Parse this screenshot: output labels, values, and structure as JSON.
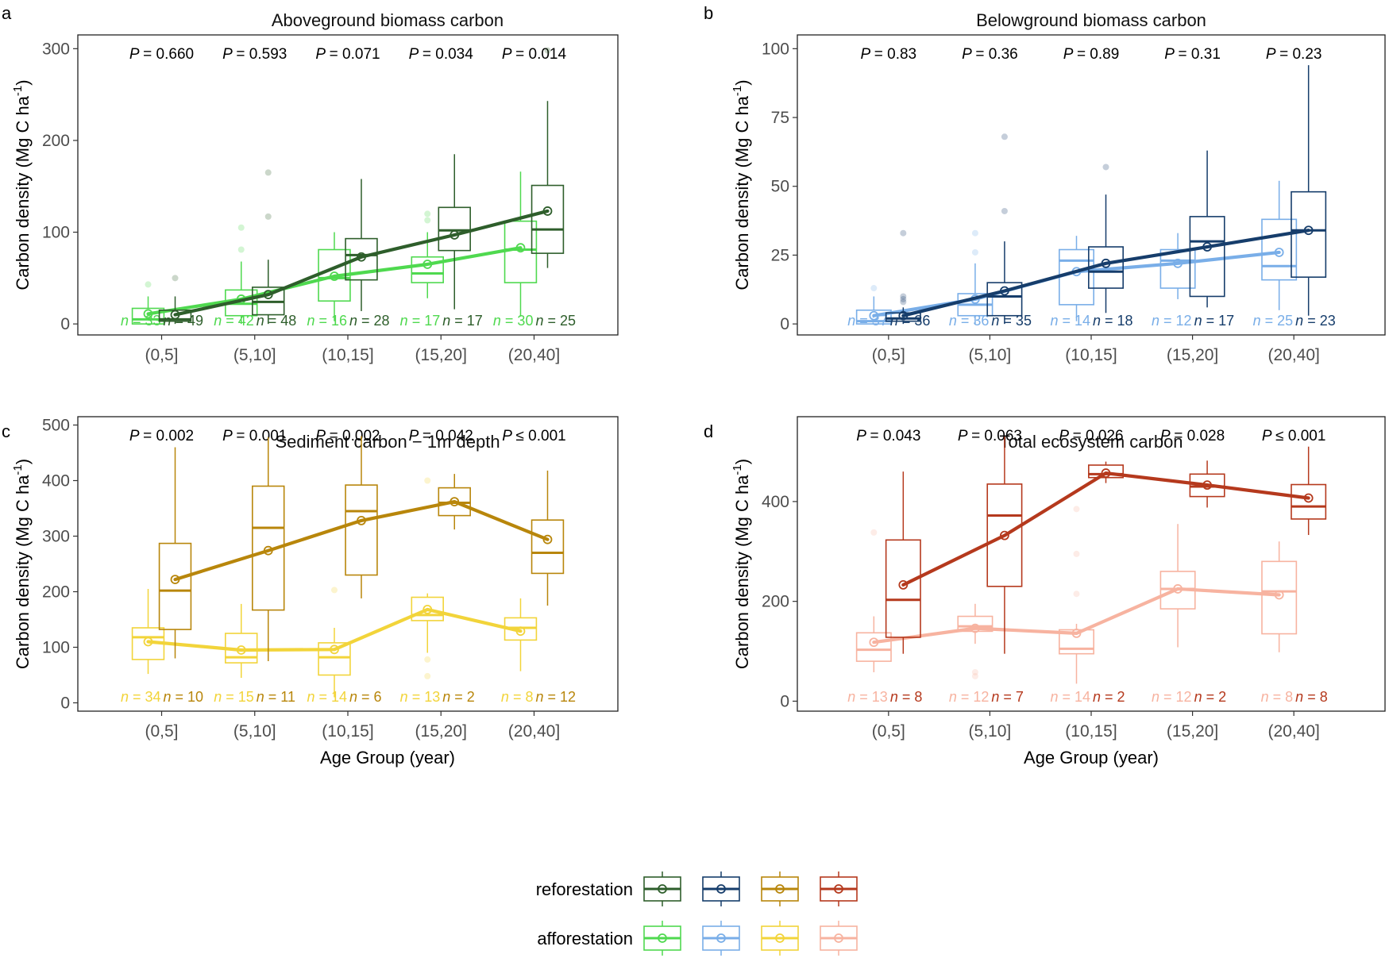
{
  "x_axis_label": "Age Group (year)",
  "legend": {
    "labels": [
      "reforestation",
      "afforestation"
    ],
    "reforestation_colors": [
      "#2e5e2b",
      "#163d6b",
      "#b8860b",
      "#b5391d"
    ],
    "afforestation_colors": [
      "#4fd94f",
      "#79aee8",
      "#f2d43a",
      "#f7b3a0"
    ]
  },
  "chart_data": [
    {
      "panel": "a",
      "type": "box",
      "title": "Aboveground biomass carbon",
      "ylabel": "Carbon density (Mg C ha",
      "ylabel_sup": "-1",
      "ylabel_close": ")",
      "ylim": [
        -12,
        315
      ],
      "yticks": [
        "0",
        "100",
        "200",
        "300"
      ],
      "ytick_values": [
        0,
        100,
        200,
        300
      ],
      "categories": [
        "(0,5]",
        "(5,10]",
        "(10,15]",
        "(15,20]",
        "(20,40]"
      ],
      "p_values": [
        "= 0.660",
        "= 0.593",
        "= 0.071",
        "= 0.034",
        "= 0.014"
      ],
      "series": [
        {
          "name": "reforestation",
          "color": "#2e5e2b",
          "boxes": [
            {
              "q1": 3,
              "median": 5,
              "q3": 15,
              "lo": 0,
              "hi": 30,
              "mean": 10,
              "outliers": [
                50
              ]
            },
            {
              "q1": 10,
              "median": 24,
              "q3": 40,
              "lo": 0,
              "hi": 70,
              "mean": 32,
              "outliers": [
                117,
                165
              ]
            },
            {
              "q1": 48,
              "median": 75,
              "q3": 93,
              "lo": 14,
              "hi": 158,
              "mean": 73,
              "outliers": []
            },
            {
              "q1": 80,
              "median": 102,
              "q3": 127,
              "lo": 16,
              "hi": 185,
              "mean": 97,
              "outliers": []
            },
            {
              "q1": 77,
              "median": 103,
              "q3": 151,
              "lo": 61,
              "hi": 243,
              "mean": 123,
              "outliers": [
                298
              ]
            }
          ],
          "trend": [
            10,
            32,
            73,
            97,
            123
          ],
          "n": [
            "= 49",
            "= 48",
            "= 28",
            "= 17",
            "= 25"
          ]
        },
        {
          "name": "afforestation",
          "color": "#4fd94f",
          "boxes": [
            {
              "q1": 0,
              "median": 5,
              "q3": 17,
              "lo": 0,
              "hi": 30,
              "mean": 11,
              "outliers": [
                43
              ]
            },
            {
              "q1": 9,
              "median": 22,
              "q3": 37,
              "lo": 0,
              "hi": 68,
              "mean": 27,
              "outliers": [
                81,
                105
              ]
            },
            {
              "q1": 25,
              "median": 50,
              "q3": 81,
              "lo": 3,
              "hi": 100,
              "mean": 52,
              "outliers": []
            },
            {
              "q1": 45,
              "median": 55,
              "q3": 73,
              "lo": 28,
              "hi": 100,
              "mean": 65,
              "outliers": [
                113,
                120
              ]
            },
            {
              "q1": 45,
              "median": 81,
              "q3": 112,
              "lo": 8,
              "hi": 166,
              "mean": 83,
              "outliers": []
            }
          ],
          "trend": [
            11,
            27,
            52,
            65,
            83
          ],
          "n": [
            "= 33",
            "= 42",
            "= 16",
            "= 17",
            "= 30"
          ]
        }
      ]
    },
    {
      "panel": "b",
      "type": "box",
      "title": "Belowground biomass carbon",
      "ylabel": "Carbon density (Mg C ha",
      "ylabel_sup": "-1",
      "ylabel_close": ")",
      "ylim": [
        -4,
        105
      ],
      "yticks": [
        "0",
        "25",
        "50",
        "75",
        "100"
      ],
      "ytick_values": [
        0,
        25,
        50,
        75,
        100
      ],
      "categories": [
        "(0,5]",
        "(5,10]",
        "(10,15]",
        "(15,20]",
        "(20,40]"
      ],
      "p_values": [
        "= 0.83",
        "= 0.36",
        "= 0.89",
        "= 0.31",
        "= 0.23"
      ],
      "series": [
        {
          "name": "reforestation",
          "color": "#163d6b",
          "boxes": [
            {
              "q1": 1,
              "median": 2,
              "q3": 4,
              "lo": 0,
              "hi": 6,
              "mean": 3,
              "outliers": [
                8,
                9,
                10,
                33
              ]
            },
            {
              "q1": 3,
              "median": 10,
              "q3": 15,
              "lo": 0,
              "hi": 30,
              "mean": 12,
              "outliers": [
                41,
                68
              ]
            },
            {
              "q1": 13,
              "median": 19,
              "q3": 28,
              "lo": 4,
              "hi": 47,
              "mean": 22,
              "outliers": [
                57
              ]
            },
            {
              "q1": 10,
              "median": 30,
              "q3": 39,
              "lo": 6,
              "hi": 63,
              "mean": 28,
              "outliers": []
            },
            {
              "q1": 17,
              "median": 34,
              "q3": 48,
              "lo": 3,
              "hi": 94,
              "mean": 34,
              "outliers": []
            }
          ],
          "trend": [
            3,
            12,
            22,
            28,
            34
          ],
          "n": [
            "= 36",
            "= 35",
            "= 18",
            "= 17",
            "= 23"
          ]
        },
        {
          "name": "afforestation",
          "color": "#79aee8",
          "boxes": [
            {
              "q1": 0,
              "median": 1,
              "q3": 5,
              "lo": 0,
              "hi": 10,
              "mean": 3,
              "outliers": [
                13
              ]
            },
            {
              "q1": 3,
              "median": 7,
              "q3": 11,
              "lo": 0,
              "hi": 22,
              "mean": 9,
              "outliers": [
                26,
                33
              ]
            },
            {
              "q1": 7,
              "median": 23,
              "q3": 27,
              "lo": 1,
              "hi": 32,
              "mean": 19,
              "outliers": []
            },
            {
              "q1": 13,
              "median": 23,
              "q3": 27,
              "lo": 9,
              "hi": 33,
              "mean": 22,
              "outliers": []
            },
            {
              "q1": 16,
              "median": 21,
              "q3": 38,
              "lo": 5,
              "hi": 52,
              "mean": 26,
              "outliers": []
            }
          ],
          "trend": [
            3,
            9,
            19,
            22,
            26
          ],
          "n": [
            "= 37",
            "= 36",
            "= 14",
            "= 12",
            "= 25"
          ]
        }
      ]
    },
    {
      "panel": "c",
      "type": "box",
      "title": "Sediment carbon − 1m depth",
      "ylabel": "Carbon density (Mg C ha",
      "ylabel_sup": "-1",
      "ylabel_close": ")",
      "ylim": [
        -15,
        515
      ],
      "yticks": [
        "0",
        "100",
        "200",
        "300",
        "400",
        "500"
      ],
      "ytick_values": [
        0,
        100,
        200,
        300,
        400,
        500
      ],
      "categories": [
        "(0,5]",
        "(5,10]",
        "(10,15]",
        "(15,20]",
        "(20,40]"
      ],
      "p_values": [
        "= 0.002",
        "= 0.001",
        "= 0.002",
        "= 0.042",
        "≤  0.001"
      ],
      "series": [
        {
          "name": "reforestation",
          "color": "#b8860b",
          "boxes": [
            {
              "q1": 132,
              "median": 202,
              "q3": 287,
              "lo": 80,
              "hi": 460,
              "mean": 222,
              "outliers": []
            },
            {
              "q1": 167,
              "median": 315,
              "q3": 390,
              "lo": 75,
              "hi": 478,
              "mean": 274,
              "outliers": []
            },
            {
              "q1": 230,
              "median": 345,
              "q3": 392,
              "lo": 188,
              "hi": 480,
              "mean": 328,
              "outliers": []
            },
            {
              "q1": 337,
              "median": 360,
              "q3": 387,
              "lo": 312,
              "hi": 412,
              "mean": 362,
              "outliers": []
            },
            {
              "q1": 233,
              "median": 270,
              "q3": 329,
              "lo": 175,
              "hi": 418,
              "mean": 294,
              "outliers": []
            }
          ],
          "trend": [
            222,
            274,
            328,
            362,
            294
          ],
          "n": [
            "= 10",
            "= 11",
            "= 6",
            "= 2",
            "= 12"
          ]
        },
        {
          "name": "afforestation",
          "color": "#f2d43a",
          "boxes": [
            {
              "q1": 78,
              "median": 118,
              "q3": 135,
              "lo": 52,
              "hi": 205,
              "mean": 110,
              "outliers": []
            },
            {
              "q1": 72,
              "median": 82,
              "q3": 125,
              "lo": 45,
              "hi": 178,
              "mean": 95,
              "outliers": []
            },
            {
              "q1": 50,
              "median": 82,
              "q3": 108,
              "lo": 10,
              "hi": 135,
              "mean": 96,
              "outliers": [
                203
              ]
            },
            {
              "q1": 148,
              "median": 158,
              "q3": 190,
              "lo": 90,
              "hi": 197,
              "mean": 168,
              "outliers": [
                48,
                78,
                400
              ]
            },
            {
              "q1": 113,
              "median": 135,
              "q3": 153,
              "lo": 57,
              "hi": 188,
              "mean": 129,
              "outliers": []
            }
          ],
          "trend": [
            110,
            95,
            96,
            168,
            129
          ],
          "n": [
            "= 34",
            "= 15",
            "= 14",
            "= 13",
            "= 8"
          ]
        }
      ]
    },
    {
      "panel": "d",
      "type": "box",
      "title": "Total ecosystem carbon",
      "ylabel": "Carbon density (Mg C ha",
      "ylabel_sup": "-1",
      "ylabel_close": ")",
      "ylim": [
        -20,
        570
      ],
      "yticks": [
        "0",
        "200",
        "400"
      ],
      "ytick_values": [
        0,
        200,
        400
      ],
      "categories": [
        "(0,5]",
        "(5,10]",
        "(10,15]",
        "(15,20]",
        "(20,40]"
      ],
      "p_values": [
        "= 0.043",
        "= 0.063",
        "= 0.026",
        "= 0.028",
        "≤  0.001"
      ],
      "series": [
        {
          "name": "reforestation",
          "color": "#b5391d",
          "boxes": [
            {
              "q1": 128,
              "median": 203,
              "q3": 323,
              "lo": 95,
              "hi": 460,
              "mean": 233,
              "outliers": []
            },
            {
              "q1": 230,
              "median": 372,
              "q3": 435,
              "lo": 95,
              "hi": 530,
              "mean": 332,
              "outliers": []
            },
            {
              "q1": 448,
              "median": 455,
              "q3": 473,
              "lo": 437,
              "hi": 480,
              "mean": 457,
              "outliers": []
            },
            {
              "q1": 410,
              "median": 430,
              "q3": 455,
              "lo": 388,
              "hi": 482,
              "mean": 433,
              "outliers": []
            },
            {
              "q1": 365,
              "median": 390,
              "q3": 434,
              "lo": 333,
              "hi": 510,
              "mean": 407,
              "outliers": []
            }
          ],
          "trend": [
            233,
            332,
            457,
            433,
            407
          ],
          "n": [
            "= 8",
            "= 7",
            "= 2",
            "= 2",
            "= 8"
          ]
        },
        {
          "name": "afforestation",
          "color": "#f7b3a0",
          "boxes": [
            {
              "q1": 80,
              "median": 103,
              "q3": 137,
              "lo": 58,
              "hi": 170,
              "mean": 118,
              "outliers": [
                338
              ]
            },
            {
              "q1": 140,
              "median": 150,
              "q3": 170,
              "lo": 115,
              "hi": 195,
              "mean": 146,
              "outliers": [
                50,
                58
              ]
            },
            {
              "q1": 95,
              "median": 105,
              "q3": 143,
              "lo": 35,
              "hi": 155,
              "mean": 136,
              "outliers": [
                215,
                295,
                385
              ]
            },
            {
              "q1": 185,
              "median": 225,
              "q3": 260,
              "lo": 108,
              "hi": 355,
              "mean": 225,
              "outliers": []
            },
            {
              "q1": 135,
              "median": 220,
              "q3": 280,
              "lo": 98,
              "hi": 320,
              "mean": 213,
              "outliers": []
            }
          ],
          "trend": [
            118,
            146,
            136,
            225,
            213
          ],
          "n": [
            "= 13",
            "= 12",
            "= 14",
            "= 12",
            "= 8"
          ]
        }
      ]
    }
  ]
}
